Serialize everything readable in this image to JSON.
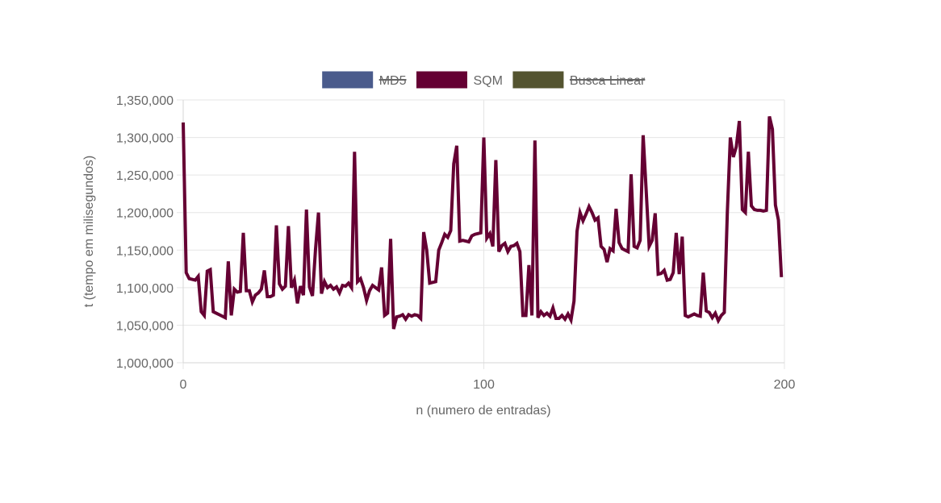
{
  "chart_data": {
    "type": "line",
    "xlabel": "n (numero de entradas)",
    "ylabel": "t (tempo em milisegundos)",
    "xlim": [
      0,
      200
    ],
    "ylim": [
      1000000,
      1350000
    ],
    "x_ticks": [
      "0",
      "100",
      "200"
    ],
    "y_ticks": [
      "1,000,000",
      "1,050,000",
      "1,100,000",
      "1,150,000",
      "1,200,000",
      "1,250,000",
      "1,300,000",
      "1,350,000"
    ],
    "grid": true,
    "legend": {
      "position": "top",
      "items": [
        {
          "name": "MD5",
          "color": "#4a5b8c",
          "hidden": true
        },
        {
          "name": "SQM",
          "color": "#650033",
          "hidden": false
        },
        {
          "name": "Busca Linear",
          "color": "#545430",
          "hidden": true
        }
      ]
    },
    "series": [
      {
        "name": "SQM",
        "color": "#650033",
        "x": [
          0,
          1,
          2,
          3,
          4,
          5,
          6,
          7,
          8,
          9,
          10,
          11,
          12,
          13,
          14,
          15,
          16,
          17,
          18,
          19,
          20,
          21,
          22,
          23,
          24,
          25,
          26,
          27,
          28,
          29,
          30,
          31,
          32,
          33,
          34,
          35,
          36,
          37,
          38,
          39,
          40,
          41,
          42,
          43,
          44,
          45,
          46,
          47,
          48,
          49,
          50,
          51,
          52,
          53,
          54,
          55,
          56,
          57,
          58,
          59,
          60,
          61,
          62,
          63,
          64,
          65,
          66,
          67,
          68,
          69,
          70,
          71,
          72,
          73,
          74,
          75,
          76,
          77,
          78,
          79,
          80,
          81,
          82,
          83,
          84,
          85,
          86,
          87,
          88,
          89,
          90,
          91,
          92,
          93,
          94,
          95,
          96,
          97,
          98,
          99,
          100,
          101,
          102,
          103,
          104,
          105,
          106,
          107,
          108,
          109,
          110,
          111,
          112,
          113,
          114,
          115,
          116,
          117,
          118,
          119,
          120,
          121,
          122,
          123,
          124,
          125,
          126,
          127,
          128,
          129,
          130,
          131,
          132,
          133,
          134,
          135,
          136,
          137,
          138,
          139,
          140,
          141,
          142,
          143,
          144,
          145,
          146,
          147,
          148,
          149,
          150,
          151,
          152,
          153,
          154,
          155,
          156,
          157,
          158,
          159,
          160,
          161,
          162,
          163,
          164,
          165,
          166,
          167,
          168,
          169,
          170,
          171,
          172,
          173,
          174,
          175,
          176,
          177,
          178,
          179,
          180,
          181,
          182,
          183,
          184,
          185,
          186,
          187,
          188,
          189,
          190,
          191,
          192,
          193,
          194,
          195,
          196,
          197,
          198,
          199
        ],
        "values": [
          1320000,
          1120000,
          1112000,
          1111000,
          1110000,
          1115000,
          1068000,
          1063000,
          1122000,
          1124000,
          1068000,
          1066000,
          1064000,
          1062000,
          1060000,
          1135000,
          1063000,
          1098000,
          1094000,
          1095000,
          1173000,
          1096000,
          1096000,
          1081000,
          1090000,
          1093000,
          1098000,
          1123000,
          1088000,
          1088000,
          1090000,
          1183000,
          1105000,
          1098000,
          1102000,
          1182000,
          1100000,
          1110000,
          1079000,
          1102000,
          1090000,
          1204000,
          1101000,
          1089000,
          1150000,
          1200000,
          1092000,
          1108000,
          1100000,
          1103000,
          1098000,
          1101000,
          1093000,
          1103000,
          1102000,
          1106000,
          1100000,
          1281000,
          1108000,
          1112000,
          1100000,
          1083000,
          1096000,
          1103000,
          1100000,
          1097000,
          1127000,
          1063000,
          1066000,
          1165000,
          1045000,
          1061000,
          1062000,
          1064000,
          1058000,
          1064000,
          1062000,
          1064000,
          1063000,
          1059000,
          1174000,
          1150000,
          1106000,
          1107000,
          1108000,
          1150000,
          1160000,
          1171000,
          1167000,
          1176000,
          1265000,
          1289000,
          1162000,
          1163000,
          1162000,
          1161000,
          1169000,
          1171000,
          1172000,
          1173000,
          1300000,
          1166000,
          1172000,
          1155000,
          1270000,
          1148000,
          1156000,
          1159000,
          1148000,
          1155000,
          1156000,
          1159000,
          1148000,
          1063000,
          1063000,
          1130000,
          1063000,
          1296000,
          1060000,
          1068000,
          1063000,
          1066000,
          1062000,
          1073000,
          1059000,
          1059000,
          1063000,
          1058000,
          1065000,
          1057000,
          1082000,
          1175000,
          1200000,
          1189000,
          1198000,
          1208000,
          1200000,
          1190000,
          1193000,
          1155000,
          1151000,
          1134000,
          1152000,
          1149000,
          1205000,
          1160000,
          1152000,
          1150000,
          1148000,
          1251000,
          1155000,
          1153000,
          1163000,
          1303000,
          1230000,
          1155000,
          1163000,
          1199000,
          1118000,
          1119000,
          1123000,
          1110000,
          1111000,
          1120000,
          1173000,
          1118000,
          1168000,
          1063000,
          1061000,
          1063000,
          1065000,
          1063000,
          1062000,
          1120000,
          1069000,
          1067000,
          1060000,
          1066000,
          1056000,
          1063000,
          1067000,
          1200000,
          1300000,
          1274000,
          1288000,
          1322000,
          1204000,
          1200000,
          1281000,
          1209000,
          1204000,
          1203000,
          1203000,
          1202000,
          1203000,
          1328000,
          1311000,
          1210000,
          1190000,
          1114000
        ]
      }
    ]
  }
}
